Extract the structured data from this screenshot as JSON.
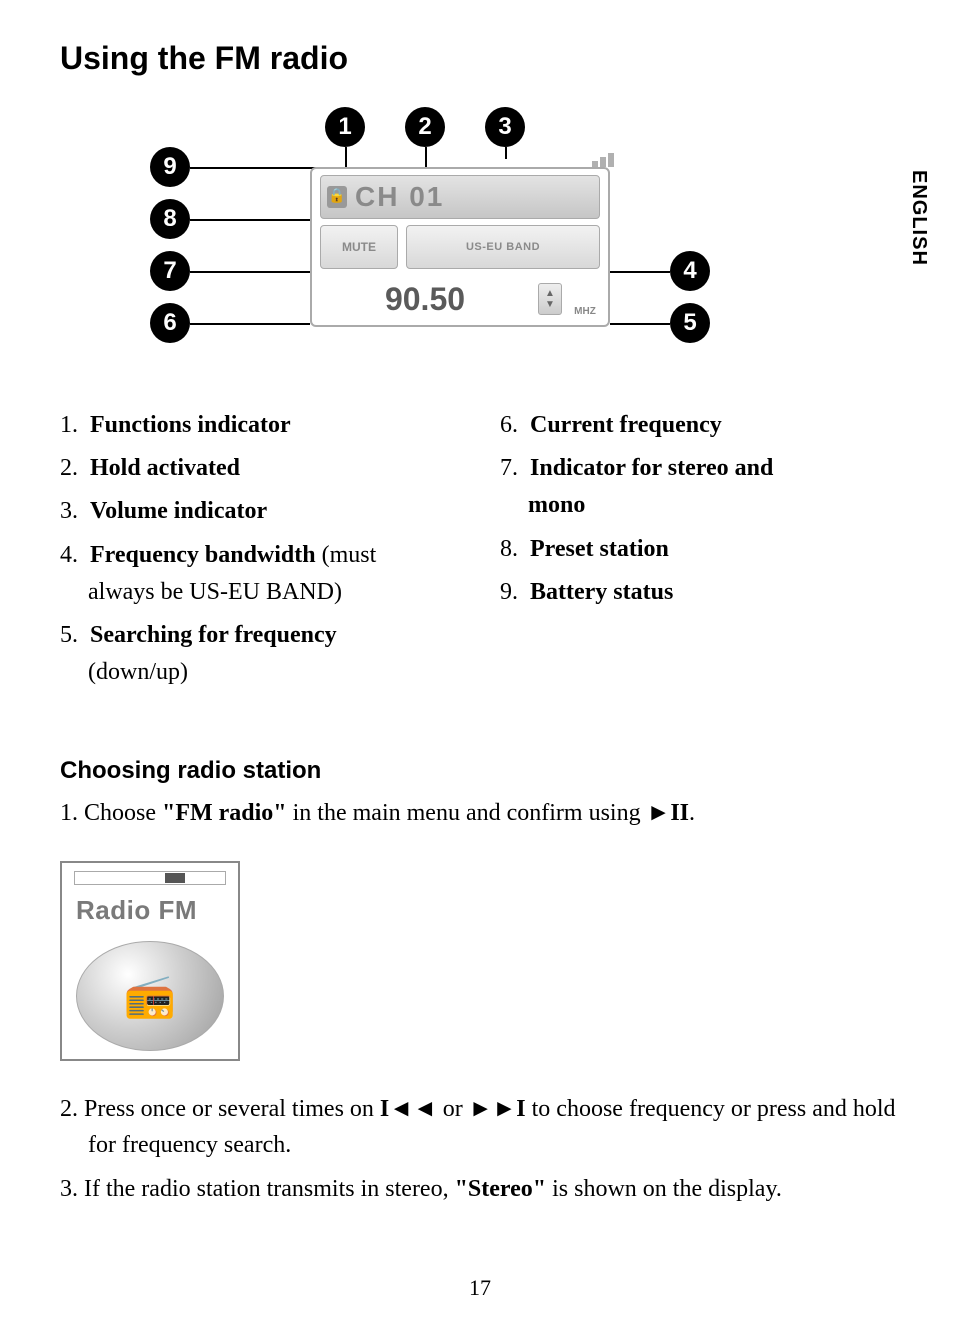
{
  "title": "Using the FM radio",
  "side_label": "ENGLISH",
  "page_number": "17",
  "callouts": {
    "c1": "1",
    "c2": "2",
    "c3": "3",
    "c4": "4",
    "c5": "5",
    "c6": "6",
    "c7": "7",
    "c8": "8",
    "c9": "9"
  },
  "device": {
    "channel_label": "CH 01",
    "mute_label": "MUTE",
    "band_label": "US-EU BAND",
    "frequency": "90.50",
    "unit": "MHZ",
    "lock_icon": "lock-icon",
    "updown_icon": "up-down-icon"
  },
  "legend_left": [
    {
      "n": "1.",
      "bold": "Functions indicator"
    },
    {
      "n": "2.",
      "bold": "Hold activated"
    },
    {
      "n": "3.",
      "bold": "Volume indicator"
    },
    {
      "n": "4.",
      "bold": "Frequency bandwidth",
      "tail": " (must",
      "sub": "always be US-EU BAND)"
    },
    {
      "n": "5.",
      "bold": "Searching for frequency",
      "sub": "(down/up)"
    }
  ],
  "legend_right": [
    {
      "n": "6.",
      "bold": "Current frequency"
    },
    {
      "n": "7.",
      "bold": "Indicator for stereo and",
      "sub_bold": "mono"
    },
    {
      "n": "8.",
      "bold": "Preset station"
    },
    {
      "n": "9.",
      "bold": "Battery status"
    }
  ],
  "section_heading": "Choosing radio station",
  "steps": {
    "s1_pre": "1.  Choose ",
    "s1_bold": "\"FM radio\"",
    "s1_mid": " in the main menu and confirm using ",
    "s1_sym": "►II",
    "s1_end": ".",
    "s2_pre": "2.  Press once or several times on ",
    "s2_b1": "I◄◄",
    "s2_mid": " or ",
    "s2_b2": "►►I",
    "s2_tail": " to choose frequency or press and hold for frequency search.",
    "s3_pre": "3.  If the radio station transmits in stereo, ",
    "s3_bold": "\"Stereo\"",
    "s3_tail": " is shown on the display."
  },
  "thumb": {
    "title": "Radio FM"
  }
}
